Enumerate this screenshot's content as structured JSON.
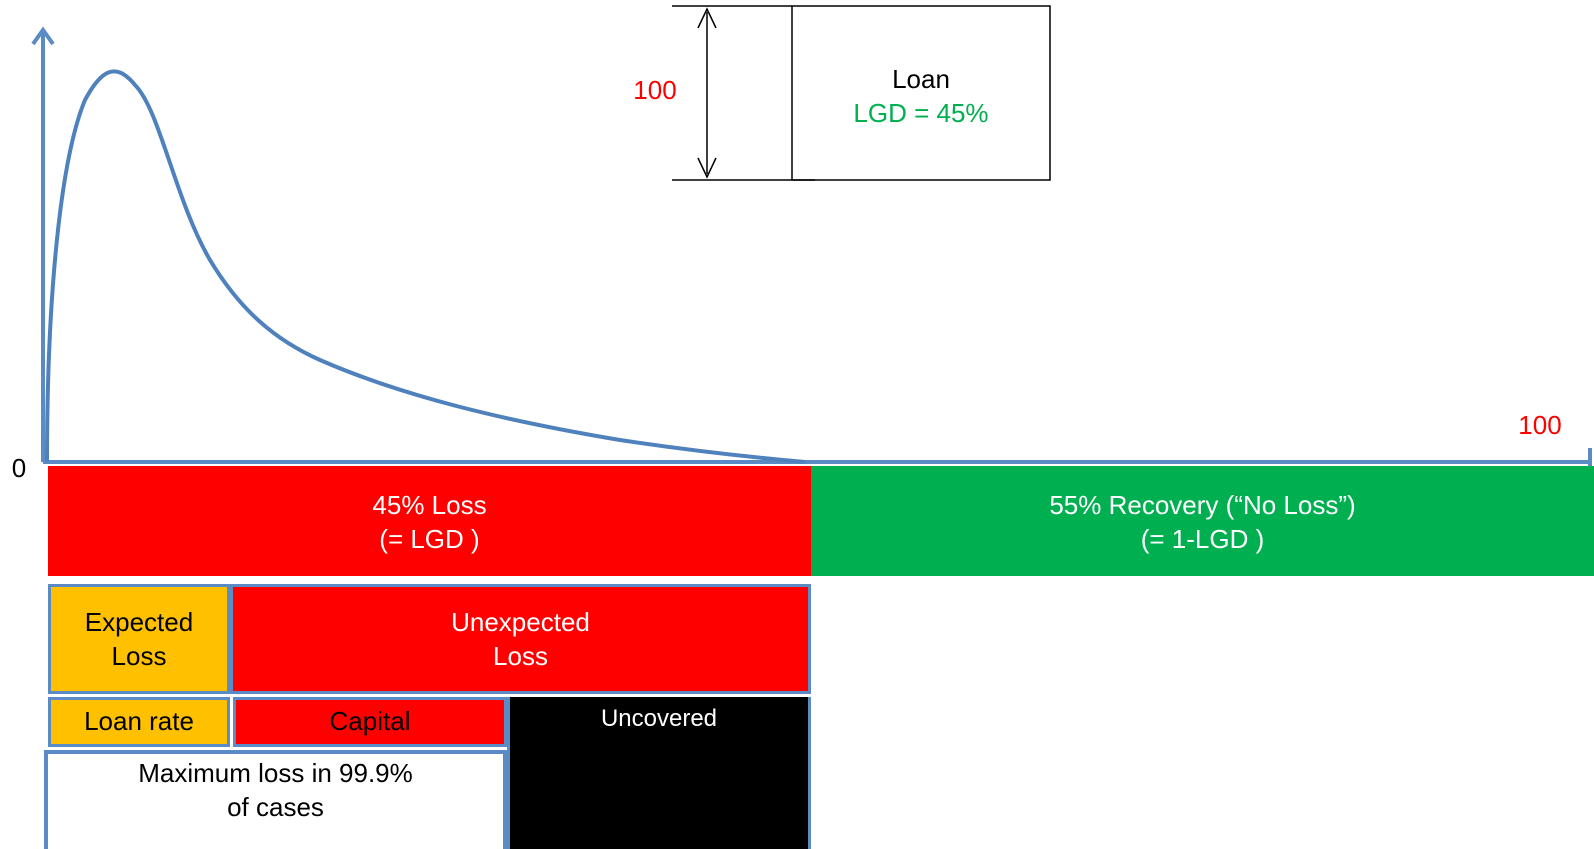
{
  "colors": {
    "axis": "#5b8bc4",
    "curve": "#4f81bd",
    "loss_red": "#ff0000",
    "recovery_green": "#00b050",
    "expected_orange": "#ffc000",
    "uncovered_black": "#000000",
    "red_text": "#ff0000",
    "green_text": "#00b050"
  },
  "axis": {
    "origin_label": "0",
    "x_end_label": "100"
  },
  "loan_box": {
    "height_label": "100",
    "title": "Loan",
    "lgd": "LGD = 45%"
  },
  "bars": {
    "loss": "45% Loss\n(=  LGD )",
    "recovery": "55% Recovery (“No Loss”)\n(=  1-LGD )",
    "expected_loss": "Expected\nLoss",
    "unexpected_loss": "Unexpected\nLoss",
    "loan_rate": "Loan rate",
    "capital": "Capital",
    "uncovered": "Uncovered",
    "max_loss": "Maximum loss in 99.9%\nof cases"
  }
}
